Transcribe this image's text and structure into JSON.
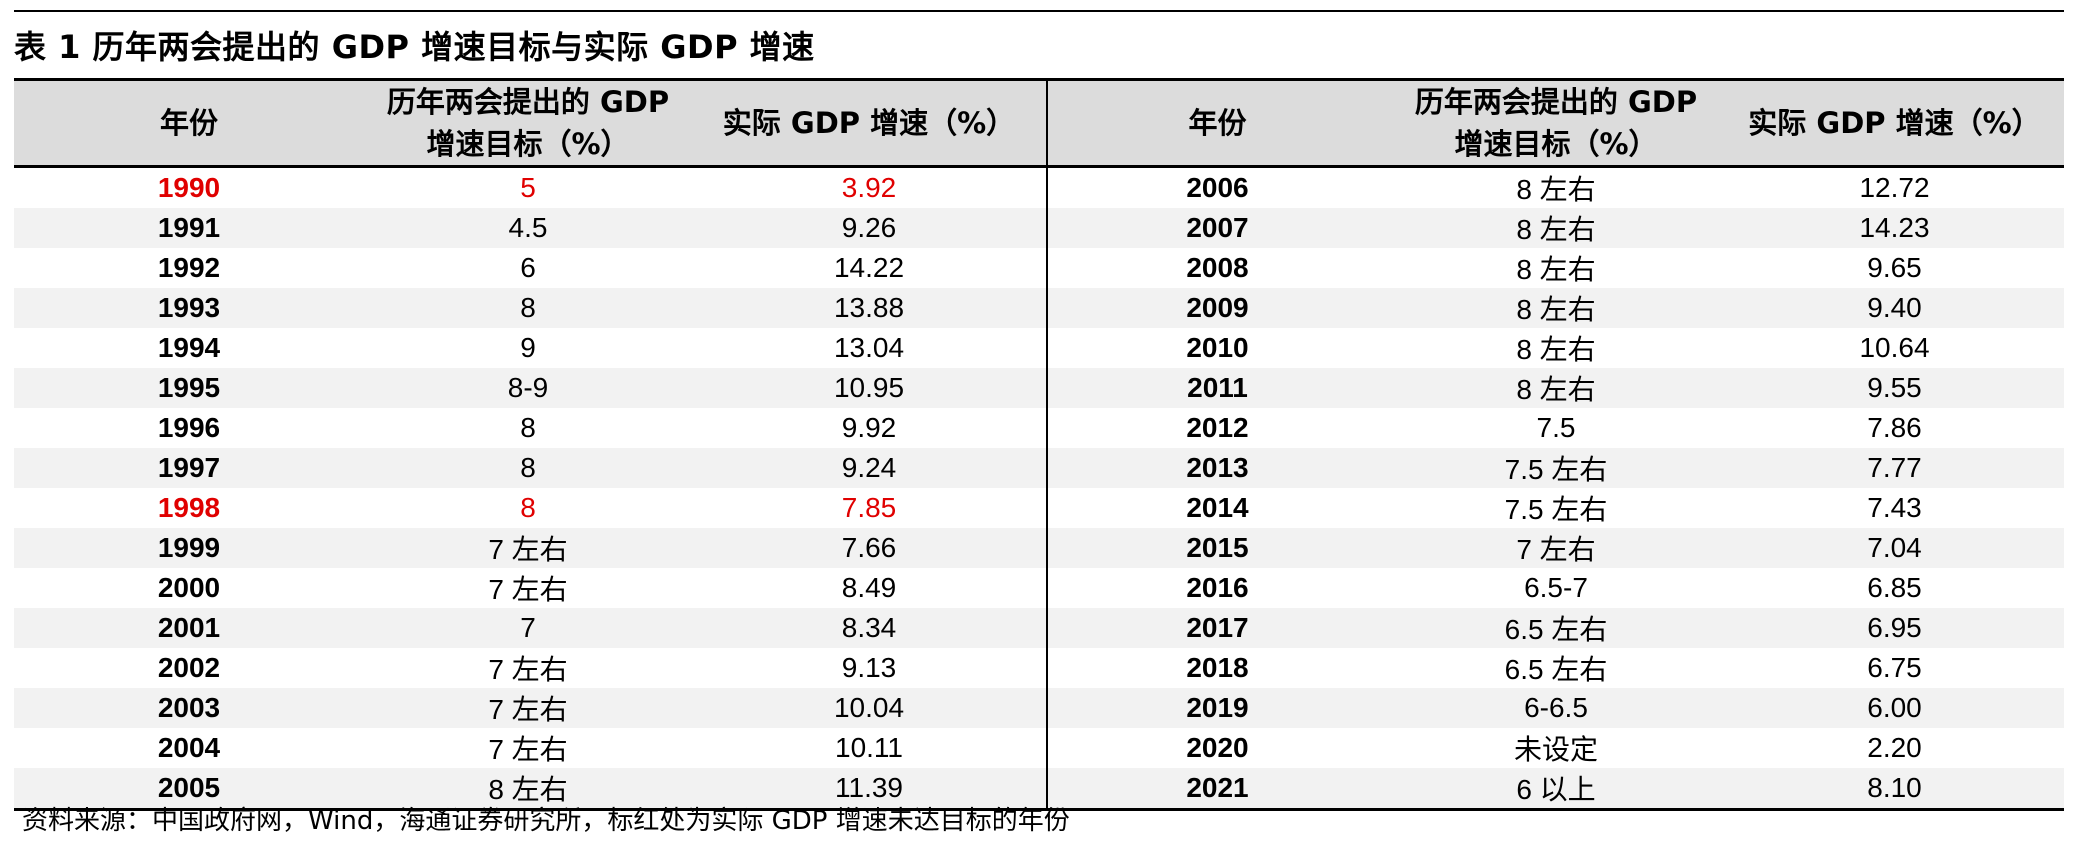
{
  "title": "表 1  历年两会提出的 GDP 增速目标与实际 GDP 增速",
  "headers": {
    "year": "年份",
    "target_line1": "历年两会提出的 GDP",
    "target_line2": "增速目标（%）",
    "actual": "实际 GDP 增速（%）"
  },
  "highlight_color": "#e00000",
  "rows": [
    {
      "left": {
        "year": "1990",
        "target": "5",
        "actual": "3.92",
        "missed": true
      },
      "right": {
        "year": "2006",
        "target": "8 左右",
        "actual": "12.72"
      }
    },
    {
      "left": {
        "year": "1991",
        "target": "4.5",
        "actual": "9.26",
        "missed": false
      },
      "right": {
        "year": "2007",
        "target": "8 左右",
        "actual": "14.23"
      }
    },
    {
      "left": {
        "year": "1992",
        "target": "6",
        "actual": "14.22",
        "missed": false
      },
      "right": {
        "year": "2008",
        "target": "8 左右",
        "actual": "9.65"
      }
    },
    {
      "left": {
        "year": "1993",
        "target": "8",
        "actual": "13.88",
        "missed": false
      },
      "right": {
        "year": "2009",
        "target": "8 左右",
        "actual": "9.40"
      }
    },
    {
      "left": {
        "year": "1994",
        "target": "9",
        "actual": "13.04",
        "missed": false
      },
      "right": {
        "year": "2010",
        "target": "8 左右",
        "actual": "10.64"
      }
    },
    {
      "left": {
        "year": "1995",
        "target": "8-9",
        "actual": "10.95",
        "missed": false
      },
      "right": {
        "year": "2011",
        "target": "8 左右",
        "actual": "9.55"
      }
    },
    {
      "left": {
        "year": "1996",
        "target": "8",
        "actual": "9.92",
        "missed": false
      },
      "right": {
        "year": "2012",
        "target": "7.5",
        "actual": "7.86"
      }
    },
    {
      "left": {
        "year": "1997",
        "target": "8",
        "actual": "9.24",
        "missed": false
      },
      "right": {
        "year": "2013",
        "target": "7.5 左右",
        "actual": "7.77"
      }
    },
    {
      "left": {
        "year": "1998",
        "target": "8",
        "actual": "7.85",
        "missed": true
      },
      "right": {
        "year": "2014",
        "target": "7.5 左右",
        "actual": "7.43"
      }
    },
    {
      "left": {
        "year": "1999",
        "target": "7 左右",
        "actual": "7.66",
        "missed": false
      },
      "right": {
        "year": "2015",
        "target": "7 左右",
        "actual": "7.04"
      }
    },
    {
      "left": {
        "year": "2000",
        "target": "7 左右",
        "actual": "8.49",
        "missed": false
      },
      "right": {
        "year": "2016",
        "target": "6.5-7",
        "actual": "6.85"
      }
    },
    {
      "left": {
        "year": "2001",
        "target": "7",
        "actual": "8.34",
        "missed": false
      },
      "right": {
        "year": "2017",
        "target": "6.5 左右",
        "actual": "6.95"
      }
    },
    {
      "left": {
        "year": "2002",
        "target": "7 左右",
        "actual": "9.13",
        "missed": false
      },
      "right": {
        "year": "2018",
        "target": "6.5 左右",
        "actual": "6.75"
      }
    },
    {
      "left": {
        "year": "2003",
        "target": "7 左右",
        "actual": "10.04",
        "missed": false
      },
      "right": {
        "year": "2019",
        "target": "6-6.5",
        "actual": "6.00"
      }
    },
    {
      "left": {
        "year": "2004",
        "target": "7 左右",
        "actual": "10.11",
        "missed": false
      },
      "right": {
        "year": "2020",
        "target": "未设定",
        "actual": "2.20"
      }
    },
    {
      "left": {
        "year": "2005",
        "target": "8 左右",
        "actual": "11.39",
        "missed": false
      },
      "right": {
        "year": "2021",
        "target": "6 以上",
        "actual": "8.10"
      }
    }
  ],
  "note": "资料来源：中国政府网，Wind，海通证券研究所，标红处为实际 GDP 增速未达目标的年份"
}
